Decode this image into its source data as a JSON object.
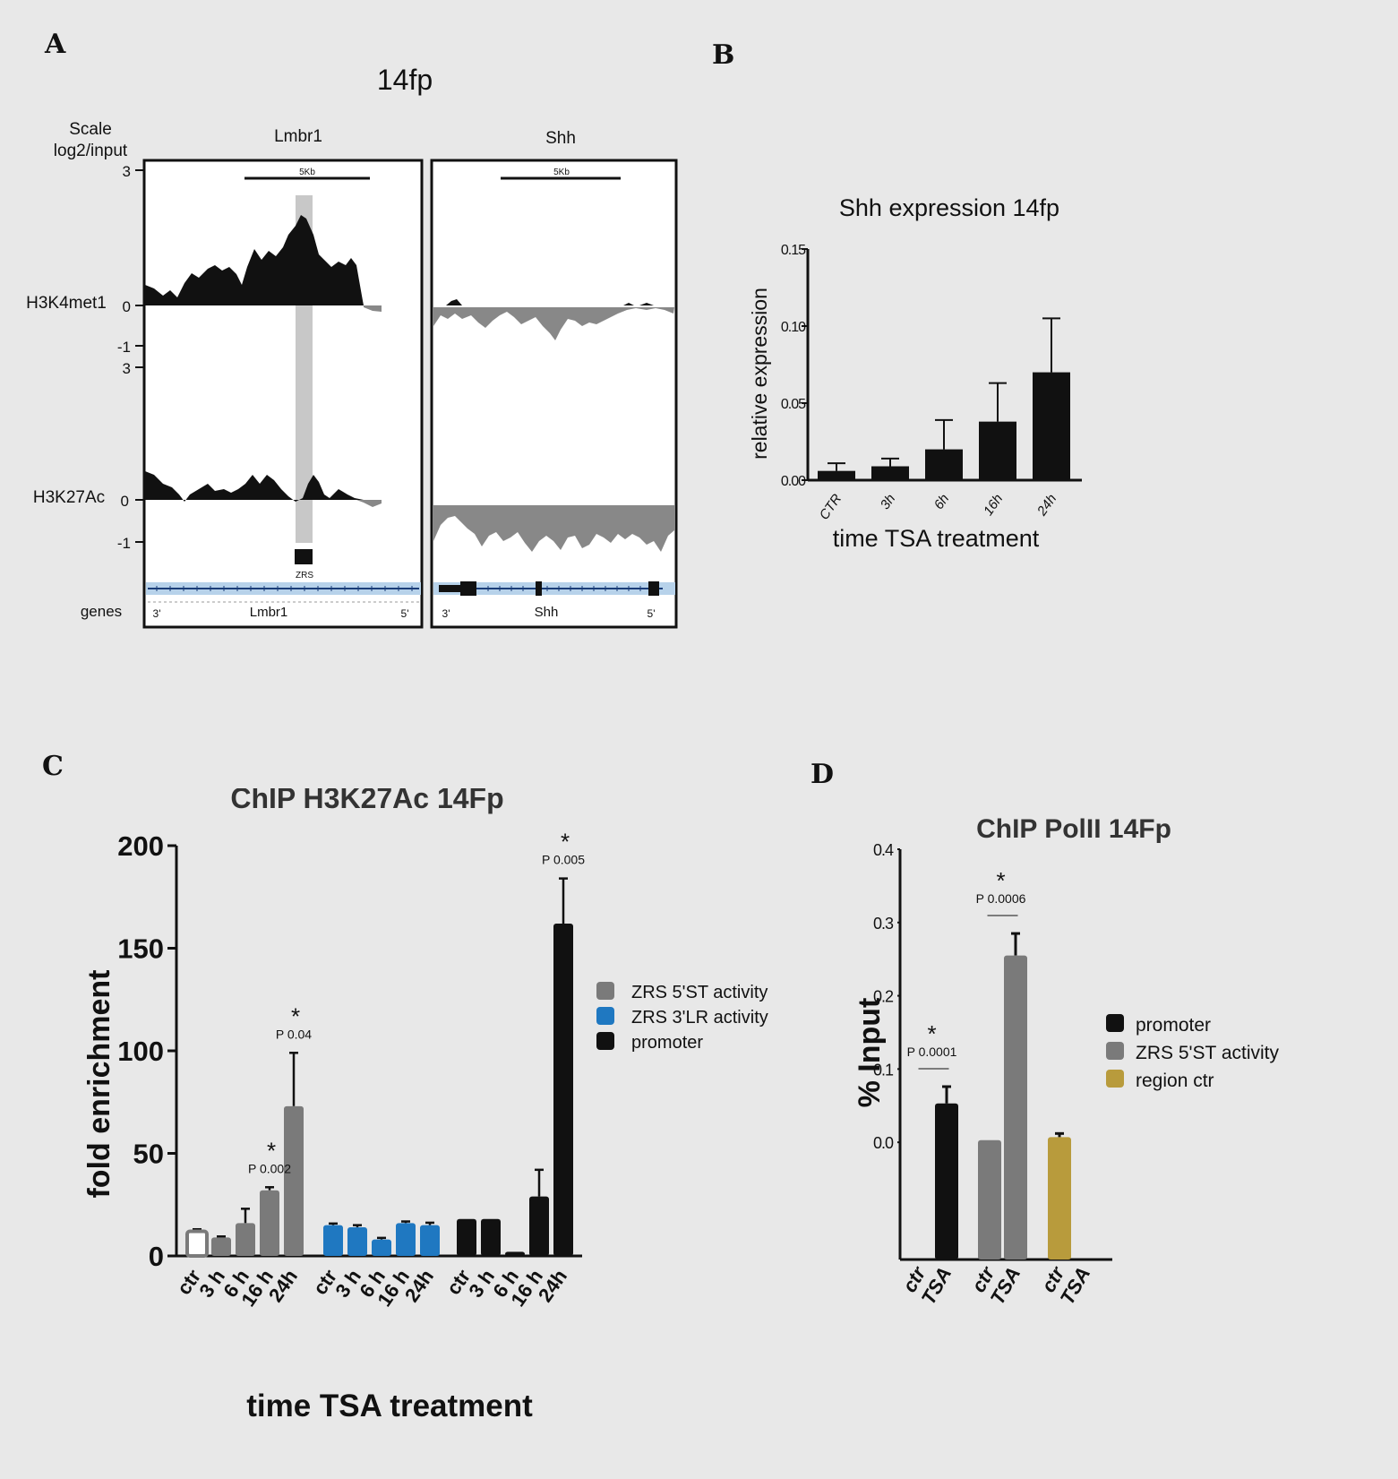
{
  "panels": {
    "a": "A",
    "b": "B",
    "c": "C",
    "d": "D"
  },
  "colors": {
    "black": "#111111",
    "gray": "#7a7a7a",
    "blue": "#1f78c1",
    "gold": "#b89b3c",
    "highlight": "#c8c8c8",
    "signal_gray": "#888888"
  },
  "tracks": {
    "title": "14fp",
    "scale_label": [
      "Scale",
      "log2/input"
    ],
    "col_labels": [
      "Lmbr1",
      "Shh"
    ],
    "scalebar": "5Kb",
    "row_labels": {
      "h3k4": "H3K4met1",
      "h3k27": "H3K27Ac",
      "genes": "genes"
    },
    "ticks": {
      "top_max": "3",
      "top_zero": "0",
      "top_min": "-1",
      "bottom_max": "3",
      "bottom_zero": "0",
      "bottom_min": "-1"
    },
    "zrs_label": "ZRS",
    "gene_labels": {
      "lmbr1": "Lmbr1",
      "shh": "Shh",
      "three_prime": "3'",
      "five_prime": "5'"
    }
  },
  "chart_data": [
    {
      "id": "B",
      "type": "bar",
      "title": "Shh expression 14fp",
      "xlabel": "time TSA treatment",
      "ylabel": "relative expression",
      "categories": [
        "CTR",
        "3h",
        "6h",
        "16h",
        "24h"
      ],
      "values": [
        0.006,
        0.009,
        0.02,
        0.038,
        0.07
      ],
      "errors": [
        0.005,
        0.005,
        0.019,
        0.025,
        0.035
      ],
      "ylim": [
        0,
        0.15
      ],
      "yticks": [
        "0.00",
        "0.05",
        "0.10",
        "0.15"
      ],
      "color": "#111111"
    },
    {
      "id": "C",
      "type": "bar",
      "title": "ChIP H3K27Ac 14Fp",
      "xlabel": "time TSA treatment",
      "ylabel": "fold enrichment",
      "categories": [
        "ctr",
        "3 h",
        "6 h",
        "16 h",
        "24h"
      ],
      "ylim": [
        0,
        200
      ],
      "yticks": [
        "0",
        "50",
        "100",
        "150",
        "200"
      ],
      "series": [
        {
          "name": "ZRS 5'ST activity",
          "color": "#7a7a7a",
          "values": [
            12,
            9,
            16,
            32,
            73
          ],
          "errors": [
            1,
            0.5,
            7,
            1.5,
            26
          ]
        },
        {
          "name": "ZRS 3'LR activity",
          "color": "#1f78c1",
          "values": [
            15,
            14,
            8,
            16,
            15
          ],
          "errors": [
            0.8,
            1,
            0.8,
            0.8,
            1.2
          ]
        },
        {
          "name": "promoter",
          "color": "#111111",
          "values": [
            18,
            18,
            2,
            29,
            162
          ],
          "errors": [
            0,
            0,
            0,
            13,
            22
          ]
        }
      ],
      "annotations": [
        {
          "series": 0,
          "bar": 3,
          "star": "*",
          "p": "P 0.002"
        },
        {
          "series": 0,
          "bar": 4,
          "star": "*",
          "p": "P 0.04"
        },
        {
          "series": 2,
          "bar": 4,
          "star": "*",
          "p": "P 0.005"
        }
      ]
    },
    {
      "id": "D",
      "type": "bar",
      "title": "ChIP PolII 14Fp",
      "ylabel": "% Input",
      "categories": [
        "ctr",
        "TSA"
      ],
      "ylim": [
        -0.16,
        0.4
      ],
      "yticks": [
        "0.0",
        "0.1",
        "0.2",
        "0.3",
        "0.4"
      ],
      "series": [
        {
          "name": "promoter",
          "color": "#111111",
          "values": [
            0,
            0.053
          ],
          "errors": [
            0,
            0.023
          ]
        },
        {
          "name": "ZRS 5'ST activity",
          "color": "#7a7a7a",
          "values": [
            0.003,
            0.255
          ],
          "errors": [
            0,
            0.03
          ]
        },
        {
          "name": "region ctr",
          "color": "#b89b3c",
          "values": [
            0.007,
            0
          ],
          "errors": [
            0.005,
            0
          ]
        }
      ],
      "annotations": [
        {
          "series": 0,
          "star": "*",
          "p": "P 0.0001"
        },
        {
          "series": 1,
          "star": "*",
          "p": "P 0.0006"
        }
      ]
    }
  ]
}
